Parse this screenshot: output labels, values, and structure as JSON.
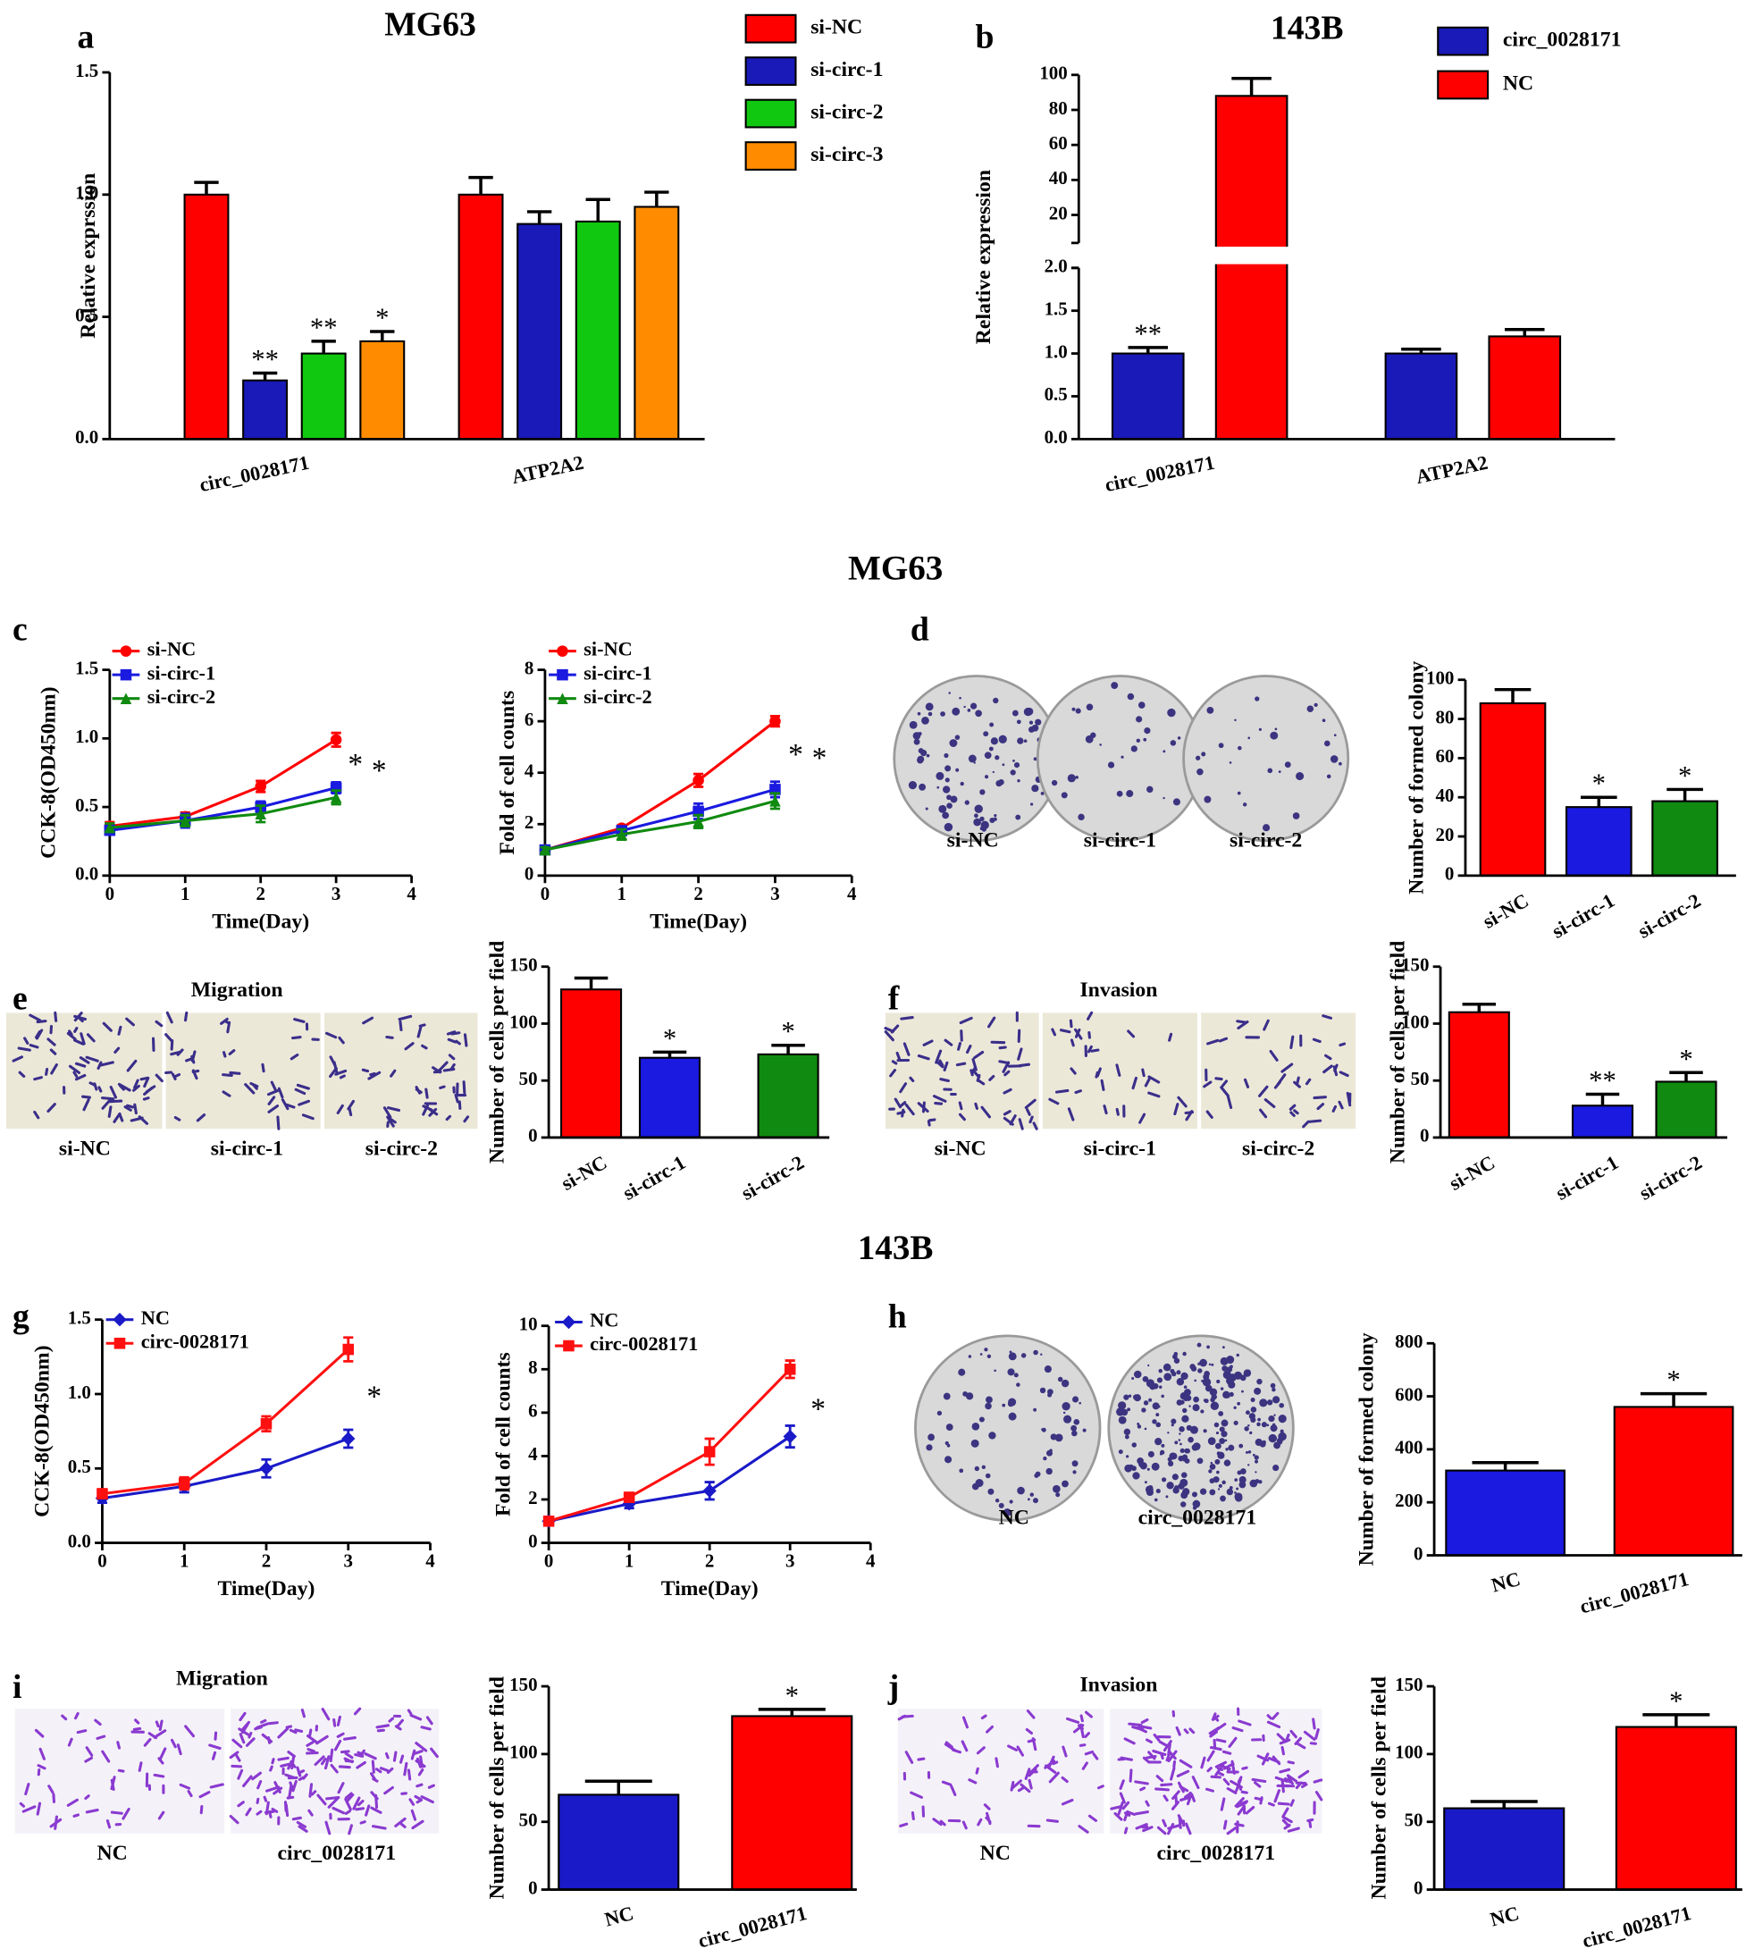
{
  "figure": {
    "panel_labels": [
      "a",
      "b",
      "c",
      "d",
      "e",
      "f",
      "g",
      "h",
      "i",
      "j"
    ],
    "section_titles": [
      "MG63",
      "143B"
    ],
    "images": [
      {
        "labels": [
          "si-NC",
          "si-circ-1",
          "si-circ-2"
        ]
      },
      {
        "title": "Migration",
        "labels": [
          "si-NC",
          "si-circ-1",
          "si-circ-2"
        ]
      },
      {
        "title": "Invasion",
        "labels": [
          "si-NC",
          "si-circ-1",
          "si-circ-2"
        ]
      },
      {
        "labels": [
          "NC",
          "circ_0028171"
        ]
      },
      {
        "title": "Migration",
        "labels": [
          "NC",
          "circ_0028171"
        ]
      },
      {
        "title": "Invasion",
        "labels": [
          "NC",
          "circ_0028171"
        ]
      }
    ]
  },
  "chart_data": [
    {
      "type": "bar",
      "title": "MG63",
      "ylabel": "Relative exprssion",
      "categories": [
        "circ_0028171",
        "ATP2A2"
      ],
      "series": [
        {
          "name": "si-NC",
          "color": "#ff0000",
          "values": [
            1.0,
            1.0
          ],
          "errors": [
            0.05,
            0.07
          ],
          "annotations": [
            null,
            null
          ]
        },
        {
          "name": "si-circ-1",
          "color": "#1a1ab8",
          "values": [
            0.24,
            0.88
          ],
          "errors": [
            0.03,
            0.05
          ],
          "annotations": [
            "**",
            null
          ]
        },
        {
          "name": "si-circ-2",
          "color": "#10c810",
          "values": [
            0.35,
            0.89
          ],
          "errors": [
            0.05,
            0.09
          ],
          "annotations": [
            "**",
            null
          ]
        },
        {
          "name": "si-circ-3",
          "color": "#ff8c00",
          "values": [
            0.4,
            0.95
          ],
          "errors": [
            0.04,
            0.06
          ],
          "annotations": [
            "*",
            null
          ]
        }
      ],
      "ylim": [
        0,
        1.5
      ],
      "yticks": [
        {
          "value": 0,
          "label": "0.0"
        },
        0.5,
        {
          "value": 1,
          "label": "1.0"
        },
        1.5
      ]
    },
    {
      "type": "bar",
      "title": "143B",
      "ylabel": "Relative expression",
      "categories": [
        "circ_0028171",
        "ATP2A2"
      ],
      "series": [
        {
          "name": "circ_0028171",
          "color": "#1a1ab8",
          "values": [
            1.0,
            1.0
          ],
          "errors": [
            0.07,
            0.05
          ],
          "annotations": [
            "**",
            null
          ]
        },
        {
          "name": "NC",
          "color": "#ff0000",
          "values": [
            88,
            1.2
          ],
          "errors": [
            10,
            0.08
          ],
          "annotations": [
            null,
            null
          ]
        }
      ],
      "ylim": [
        0,
        100
      ],
      "axis_break": [
        2,
        4
      ],
      "yticks": [
        {
          "value": 0,
          "label": "0.0"
        },
        0.5,
        {
          "value": 1,
          "label": "1.0"
        },
        1.5,
        {
          "value": 2,
          "label": "2.0"
        },
        20,
        40,
        60,
        80,
        100
      ]
    },
    {
      "type": "line",
      "ylabel": "CCK-8(OD450nm)",
      "xlabel": "Time(Day)",
      "x": [
        0,
        1,
        2,
        3
      ],
      "series": [
        {
          "name": "si-NC",
          "color": "#ff0000",
          "marker": "circle",
          "values": [
            0.36,
            0.43,
            0.65,
            0.99
          ],
          "errors": [
            0.03,
            0.03,
            0.04,
            0.05
          ]
        },
        {
          "name": "si-circ-1",
          "color": "#1a1ae0",
          "marker": "square",
          "values": [
            0.33,
            0.4,
            0.5,
            0.64
          ],
          "errors": [
            0.03,
            0.05,
            0.04,
            0.04
          ],
          "annotation": "*"
        },
        {
          "name": "si-circ-2",
          "color": "#108a10",
          "marker": "triangle",
          "values": [
            0.35,
            0.4,
            0.45,
            0.57
          ],
          "errors": [
            0.03,
            0.04,
            0.06,
            0.05
          ],
          "annotation": "*"
        }
      ],
      "xlim": [
        0,
        4
      ],
      "xticks": [
        0,
        1,
        2,
        3,
        4
      ],
      "ylim": [
        0,
        1.5
      ],
      "yticks": [
        {
          "value": 0,
          "label": "0.0"
        },
        0.5,
        {
          "value": 1,
          "label": "1.0"
        },
        1.5
      ]
    },
    {
      "type": "line",
      "ylabel": "Fold of cell counts",
      "xlabel": "Time(Day)",
      "x": [
        0,
        1,
        2,
        3
      ],
      "series": [
        {
          "name": "si-NC",
          "color": "#ff0000",
          "marker": "circle",
          "values": [
            1,
            1.85,
            3.7,
            6.0
          ],
          "errors": [
            0.1,
            0.1,
            0.25,
            0.2
          ]
        },
        {
          "name": "si-circ-1",
          "color": "#1a1ae0",
          "marker": "square",
          "values": [
            1,
            1.75,
            2.5,
            3.35
          ],
          "errors": [
            0.1,
            0.15,
            0.3,
            0.3
          ],
          "annotation": "*"
        },
        {
          "name": "si-circ-2",
          "color": "#108a10",
          "marker": "triangle",
          "values": [
            1,
            1.6,
            2.1,
            2.9
          ],
          "errors": [
            0.1,
            0.2,
            0.25,
            0.3
          ],
          "annotation": "*"
        }
      ],
      "xlim": [
        0,
        4
      ],
      "xticks": [
        0,
        1,
        2,
        3,
        4
      ],
      "ylim": [
        0,
        8
      ],
      "yticks": [
        0,
        2,
        4,
        6,
        8
      ]
    },
    {
      "type": "bar",
      "ylabel": "Number of formed colony",
      "categories": [
        "si-NC",
        "si-circ-1",
        "si-circ-2"
      ],
      "values": [
        88,
        35,
        38
      ],
      "errors": [
        7,
        5,
        6
      ],
      "colors": [
        "#ff0000",
        "#1a1ae0",
        "#108a10"
      ],
      "annotations": [
        null,
        "*",
        "*"
      ],
      "ylim": [
        0,
        100
      ],
      "yticks": [
        0,
        20,
        40,
        60,
        80,
        100
      ]
    },
    {
      "type": "bar",
      "ylabel": "Number of cells per field",
      "categories": [
        "si-NC",
        "si-circ-1",
        "si-circ-2"
      ],
      "values": [
        130,
        70,
        73
      ],
      "errors": [
        10,
        5,
        8
      ],
      "colors": [
        "#ff0000",
        "#1a1ae0",
        "#108a10"
      ],
      "annotations": [
        null,
        "*",
        "*"
      ],
      "ylim": [
        0,
        150
      ],
      "yticks": [
        0,
        50,
        100,
        150
      ]
    },
    {
      "type": "bar",
      "ylabel": "Number of cells per field",
      "categories": [
        "si-NC",
        "si-circ-1",
        "si-circ-2"
      ],
      "values": [
        110,
        28,
        49
      ],
      "errors": [
        7,
        10,
        8
      ],
      "colors": [
        "#ff0000",
        "#1a1ae0",
        "#108a10"
      ],
      "annotations": [
        null,
        "**",
        "*"
      ],
      "ylim": [
        0,
        150
      ],
      "yticks": [
        0,
        50,
        100,
        150
      ]
    },
    {
      "type": "line",
      "ylabel": "CCK-8(OD450nm)",
      "xlabel": "Time(Day)",
      "x": [
        0,
        1,
        2,
        3
      ],
      "series": [
        {
          "name": "NC",
          "color": "#1a1ac8",
          "marker": "diamond",
          "values": [
            0.3,
            0.38,
            0.5,
            0.7
          ],
          "errors": [
            0.03,
            0.04,
            0.06,
            0.06
          ]
        },
        {
          "name": "circ-0028171",
          "color": "#ff1010",
          "marker": "square",
          "values": [
            0.33,
            0.4,
            0.8,
            1.3
          ],
          "errors": [
            0.03,
            0.04,
            0.05,
            0.08
          ],
          "annotation": "*"
        }
      ],
      "xlim": [
        0,
        4
      ],
      "xticks": [
        0,
        1,
        2,
        3,
        4
      ],
      "ylim": [
        0,
        1.5
      ],
      "yticks": [
        {
          "value": 0,
          "label": "0.0"
        },
        0.5,
        {
          "value": 1,
          "label": "1.0"
        },
        1.5
      ]
    },
    {
      "type": "line",
      "ylabel": "Fold of cell counts",
      "xlabel": "Time(Day)",
      "x": [
        0,
        1,
        2,
        3
      ],
      "series": [
        {
          "name": "NC",
          "color": "#1a1ac8",
          "marker": "diamond",
          "values": [
            1,
            1.8,
            2.4,
            4.9
          ],
          "errors": [
            0.1,
            0.2,
            0.4,
            0.5
          ]
        },
        {
          "name": "circ-0028171",
          "color": "#ff1010",
          "marker": "square",
          "values": [
            1,
            2.1,
            4.2,
            8.0
          ],
          "errors": [
            0.1,
            0.2,
            0.6,
            0.4
          ],
          "annotation": "*"
        }
      ],
      "xlim": [
        0,
        4
      ],
      "xticks": [
        0,
        1,
        2,
        3,
        4
      ],
      "ylim": [
        0,
        10
      ],
      "yticks": [
        0,
        2,
        4,
        6,
        8,
        10
      ]
    },
    {
      "type": "bar",
      "ylabel": "Number of formed colony",
      "categories": [
        "NC",
        "circ_0028171"
      ],
      "values": [
        320,
        560
      ],
      "errors": [
        30,
        50
      ],
      "colors": [
        "#1a1ae0",
        "#ff0000"
      ],
      "annotations": [
        null,
        "*"
      ],
      "ylim": [
        0,
        800
      ],
      "yticks": [
        0,
        200,
        400,
        600,
        800
      ]
    },
    {
      "type": "bar",
      "ylabel": "Number of cells per field",
      "categories": [
        "NC",
        "circ_0028171"
      ],
      "values": [
        70,
        128
      ],
      "errors": [
        10,
        5
      ],
      "colors": [
        "#1a1ac8",
        "#ff0000"
      ],
      "annotations": [
        null,
        "*"
      ],
      "ylim": [
        0,
        150
      ],
      "yticks": [
        0,
        50,
        100,
        150
      ]
    },
    {
      "type": "bar",
      "ylabel": "Number of cells per field",
      "categories": [
        "NC",
        "circ_0028171"
      ],
      "values": [
        60,
        120
      ],
      "errors": [
        5,
        9
      ],
      "colors": [
        "#1a1ac8",
        "#ff0000"
      ],
      "annotations": [
        null,
        "*"
      ],
      "ylim": [
        0,
        150
      ],
      "yticks": [
        0,
        50,
        100,
        150
      ]
    }
  ]
}
